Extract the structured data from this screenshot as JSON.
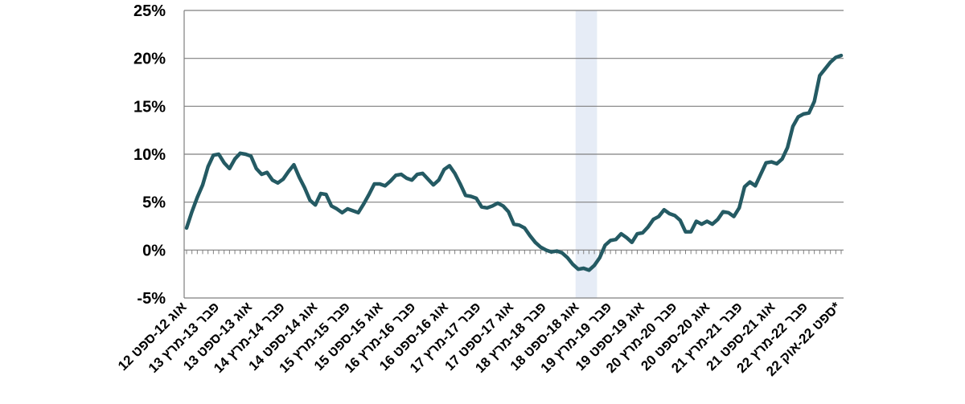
{
  "chart_data": {
    "type": "line",
    "title": "",
    "xlabel": "",
    "ylabel": "",
    "ylim": [
      -5,
      25
    ],
    "y_ticks": [
      "-5%",
      "0%",
      "5%",
      "10%",
      "15%",
      "20%",
      "25%"
    ],
    "grid": "horizontal",
    "legend": "none",
    "x_tick_labels": [
      "אוג 12-ספט 12",
      "פבר 13-מרץ 13",
      "אוג 13-ספט 13",
      "פבר 14-מרץ 14",
      "אוג 14-ספט 14",
      "פבר 15-מרץ 15",
      "אוג 15-ספט 15",
      "פבר 16-מרץ 16",
      "אוג 16-ספט 16",
      "פבר 17-מרץ 17",
      "אוג 17-ספט 17",
      "פבר 18-מרץ 18",
      "אוג 18-ספט 18",
      "פבר 19-מרץ 19",
      "אוג 19-ספט 19",
      "פבר 20-מרץ 20",
      "אוג 20-ספט 20",
      "פבר 21-מרץ 21",
      "אוג 21-ספט 21",
      "פבר 22-מרץ 22",
      "ספט 22-אוק 22*"
    ],
    "shaded_period": [
      72.5,
      76.5
    ],
    "series": [
      {
        "values": [
          2.3,
          4.0,
          5.5,
          6.8,
          8.7,
          9.9,
          10.0,
          9.1,
          8.5,
          9.5,
          10.1,
          10.0,
          9.8,
          8.5,
          7.9,
          8.1,
          7.3,
          7.0,
          7.4,
          8.2,
          8.9,
          7.6,
          6.5,
          5.2,
          4.7,
          5.9,
          5.8,
          4.6,
          4.3,
          3.9,
          4.3,
          4.1,
          3.9,
          4.8,
          5.8,
          6.9,
          6.9,
          6.7,
          7.2,
          7.8,
          7.9,
          7.5,
          7.3,
          7.9,
          8.0,
          7.4,
          6.8,
          7.3,
          8.4,
          8.8,
          8.0,
          6.9,
          5.7,
          5.6,
          5.4,
          4.5,
          4.4,
          4.6,
          4.9,
          4.6,
          4.0,
          2.7,
          2.6,
          2.3,
          1.5,
          0.8,
          0.3,
          0.0,
          -0.2,
          -0.1,
          -0.3,
          -0.8,
          -1.5,
          -2.0,
          -1.9,
          -2.1,
          -1.6,
          -0.8,
          0.5,
          1.0,
          1.1,
          1.7,
          1.3,
          0.8,
          1.7,
          1.8,
          2.4,
          3.2,
          3.5,
          4.2,
          3.8,
          3.6,
          3.1,
          1.9,
          1.9,
          3.0,
          2.7,
          3.0,
          2.7,
          3.2,
          4.0,
          3.9,
          3.5,
          4.4,
          6.6,
          7.1,
          6.7,
          7.9,
          9.1,
          9.2,
          9.0,
          9.5,
          10.7,
          12.9,
          13.9,
          14.2,
          14.3,
          15.5,
          18.2,
          18.9,
          19.6,
          20.1,
          20.3
        ]
      }
    ]
  },
  "colors": {
    "line": "#245a63",
    "grid": "#7f7f7f",
    "shade": "#e6ecf6"
  }
}
